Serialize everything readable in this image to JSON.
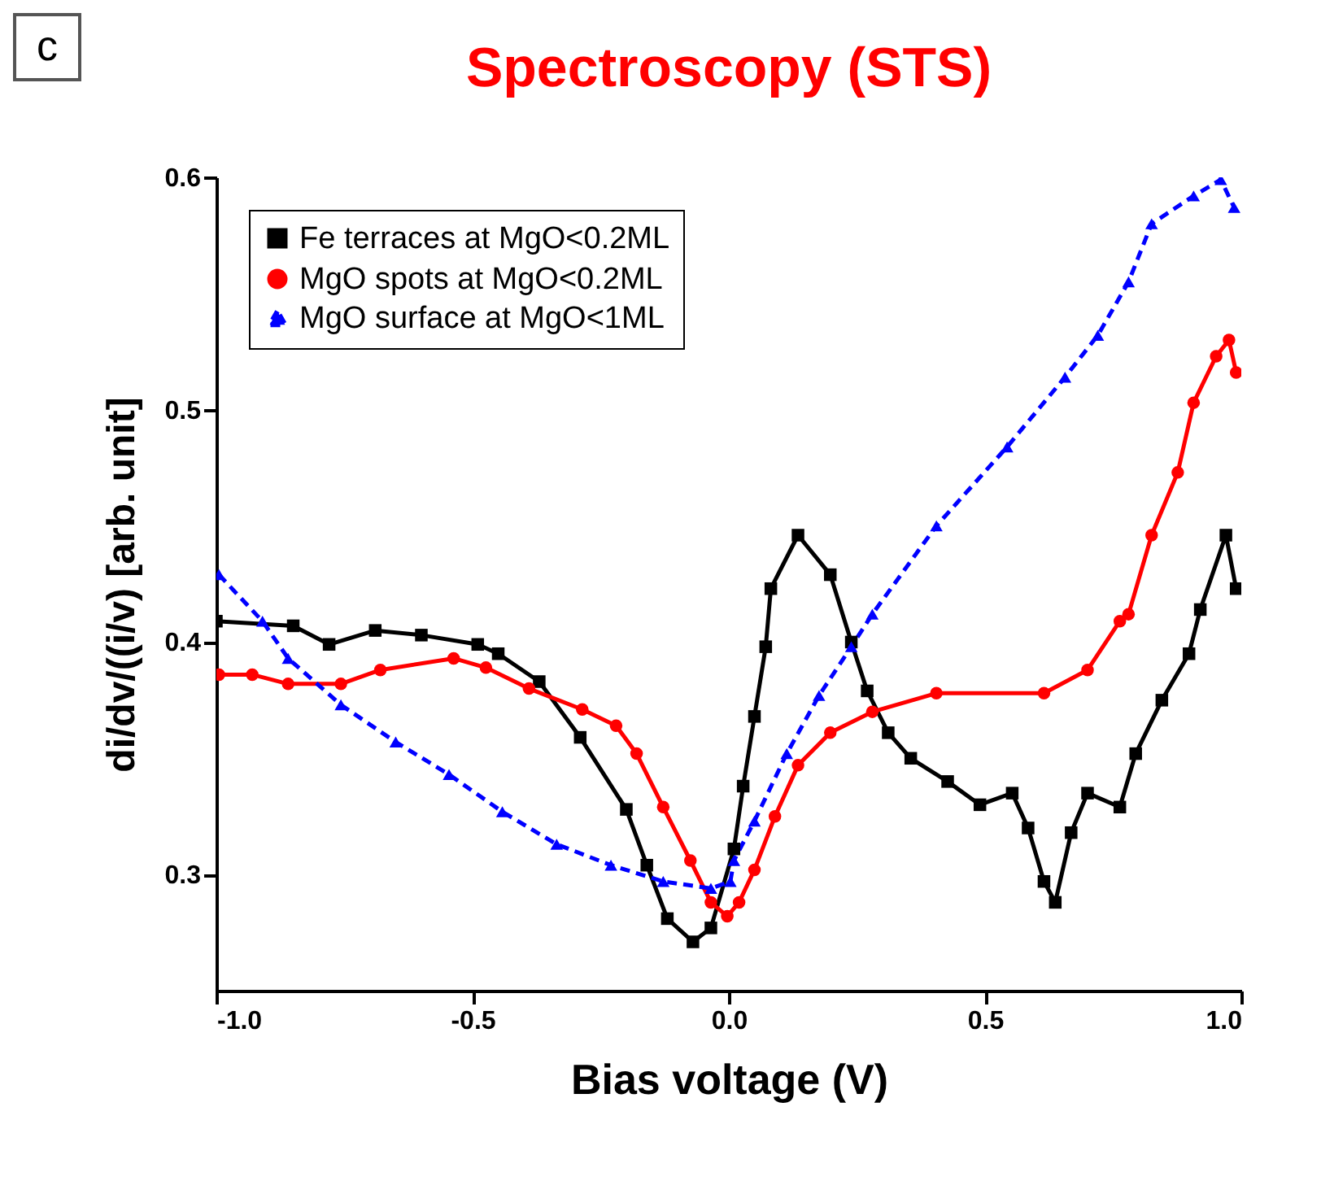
{
  "chart_data": {
    "type": "line",
    "title": "Spectroscopy (STS)",
    "xlabel": "Bias voltage (V)",
    "ylabel": "di/dv/((i/v) [arb. unit]",
    "annotations": [
      "c"
    ],
    "xlim": [
      -1.0,
      1.0
    ],
    "ylim": [
      0.25,
      0.6
    ],
    "xticks": [
      {
        "value": -1,
        "label": "-1.0"
      },
      {
        "value": -0.5,
        "label": "-0.5"
      },
      {
        "value": 0,
        "label": "0.0"
      },
      {
        "value": 0.5,
        "label": "0.5"
      },
      {
        "value": 1,
        "label": "1.0"
      }
    ],
    "yticks": [
      {
        "value": 0.3,
        "label": "0.3"
      },
      {
        "value": 0.4,
        "label": "0.4"
      },
      {
        "value": 0.5,
        "label": "0.5"
      },
      {
        "value": 0.6,
        "label": "0.6"
      }
    ],
    "grid": false,
    "legend": "top left",
    "series": [
      {
        "name": "Fe terraces at MgO<0.2ML",
        "color": "#000000",
        "marker": "square",
        "line_style": "solid",
        "x": [
          -1.0,
          -0.85,
          -0.78,
          -0.69,
          -0.6,
          -0.49,
          -0.45,
          -0.37,
          -0.29,
          -0.2,
          -0.16,
          -0.12,
          -0.07,
          -0.035,
          0.01,
          0.028,
          0.05,
          0.072,
          0.082,
          0.135,
          0.198,
          0.239,
          0.27,
          0.311,
          0.355,
          0.427,
          0.49,
          0.553,
          0.584,
          0.615,
          0.637,
          0.668,
          0.7,
          0.763,
          0.794,
          0.845,
          0.898,
          0.92,
          0.97,
          0.99
        ],
        "values": [
          0.409,
          0.407,
          0.399,
          0.405,
          0.403,
          0.399,
          0.395,
          0.383,
          0.359,
          0.328,
          0.304,
          0.281,
          0.271,
          0.277,
          0.311,
          0.338,
          0.368,
          0.398,
          0.423,
          0.446,
          0.429,
          0.4,
          0.379,
          0.361,
          0.35,
          0.34,
          0.33,
          0.335,
          0.32,
          0.297,
          0.288,
          0.318,
          0.335,
          0.329,
          0.352,
          0.375,
          0.395,
          0.414,
          0.446,
          0.423
        ]
      },
      {
        "name": "MgO spots at MgO<0.2ML",
        "color": "#ff0000",
        "marker": "circle",
        "line_style": "solid",
        "x": [
          -0.995,
          -0.93,
          -0.86,
          -0.757,
          -0.68,
          -0.537,
          -0.474,
          -0.39,
          -0.286,
          -0.22,
          -0.18,
          -0.128,
          -0.075,
          -0.035,
          -0.003,
          0.02,
          0.05,
          0.09,
          0.135,
          0.198,
          0.28,
          0.405,
          0.615,
          0.7,
          0.763,
          0.78,
          0.825,
          0.876,
          0.907,
          0.951,
          0.976,
          0.99
        ],
        "values": [
          0.386,
          0.386,
          0.382,
          0.382,
          0.388,
          0.393,
          0.389,
          0.38,
          0.371,
          0.364,
          0.352,
          0.329,
          0.306,
          0.288,
          0.282,
          0.288,
          0.302,
          0.325,
          0.347,
          0.361,
          0.37,
          0.378,
          0.378,
          0.388,
          0.409,
          0.412,
          0.446,
          0.473,
          0.503,
          0.523,
          0.53,
          0.516
        ]
      },
      {
        "name": "MgO surface at MgO<1ML",
        "color": "#0000ff",
        "marker": "triangle",
        "line_style": "dashed",
        "x": [
          -0.995,
          -0.91,
          -0.86,
          -0.757,
          -0.65,
          -0.546,
          -0.442,
          -0.336,
          -0.23,
          -0.128,
          -0.035,
          0.003,
          0.01,
          0.05,
          0.113,
          0.176,
          0.239,
          0.28,
          0.405,
          0.543,
          0.656,
          0.72,
          0.78,
          0.825,
          0.907,
          0.96,
          0.986
        ],
        "values": [
          0.429,
          0.409,
          0.393,
          0.373,
          0.357,
          0.343,
          0.327,
          0.313,
          0.304,
          0.297,
          0.294,
          0.297,
          0.306,
          0.323,
          0.352,
          0.377,
          0.398,
          0.412,
          0.45,
          0.484,
          0.514,
          0.532,
          0.555,
          0.58,
          0.592,
          0.599,
          0.587
        ]
      }
    ]
  }
}
